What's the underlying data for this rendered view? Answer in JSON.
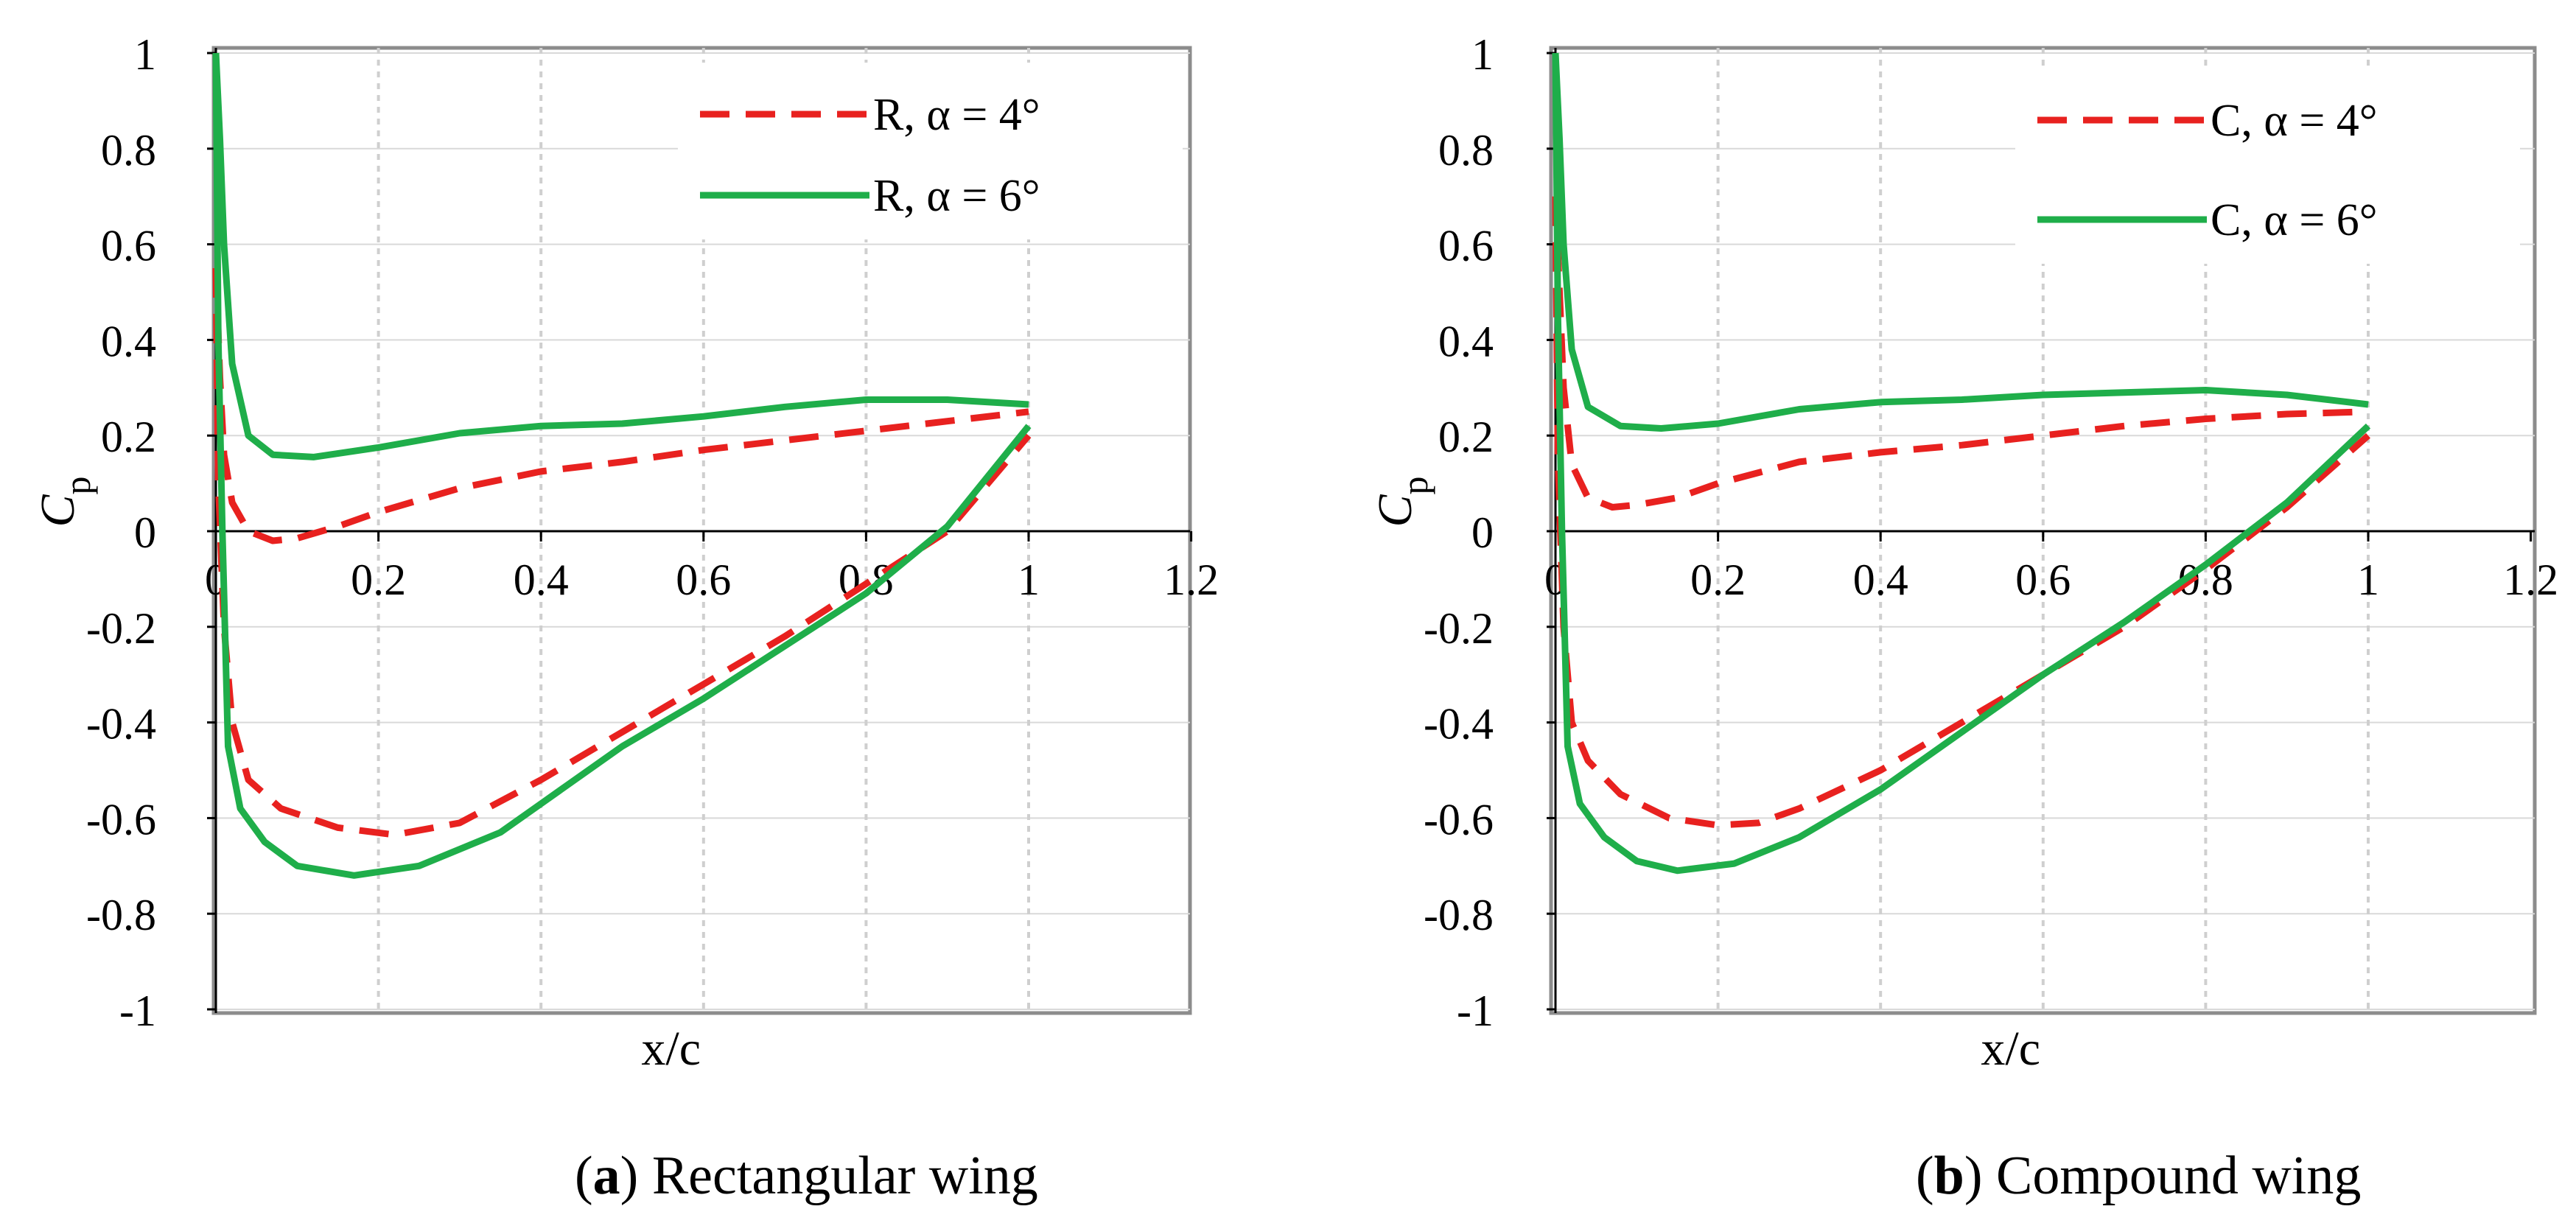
{
  "colors": {
    "alpha4": "#e8211f",
    "alpha6": "#1fae4a",
    "grid": "#d9d9d9",
    "vgrid": "#cfcfcf",
    "frame": "#8c8c8c",
    "axis": "#000000"
  },
  "chart_data": [
    {
      "type": "line",
      "panel_id": "a",
      "caption_letter": "a",
      "caption_open": "(",
      "caption_close": ")",
      "caption_text": " Rectangular wing",
      "xlabel": "x/c",
      "ylabel_main": "C",
      "ylabel_sub": "p",
      "xlim": [
        0,
        1.2
      ],
      "ylim": [
        -1,
        1
      ],
      "xticks": [
        0,
        0.2,
        0.4,
        0.6,
        0.8,
        1,
        1.2
      ],
      "xtick_labels": [
        "0",
        "0.2",
        "0.4",
        "0.6",
        "0.8",
        "1",
        "1.2"
      ],
      "yticks": [
        1,
        0.8,
        0.6,
        0.4,
        0.2,
        0,
        -0.2,
        -0.4,
        -0.6,
        -0.8,
        -1
      ],
      "ytick_labels": [
        "1",
        "0.8",
        "0.6",
        "0.4",
        "0.2",
        "0",
        "-0.2",
        "-0.4",
        "-0.6",
        "-0.8",
        "-1"
      ],
      "legend_position": "top-right",
      "series": [
        {
          "name": "R, α = 4°",
          "style": "dashed",
          "color_key": "alpha4",
          "upper": [
            [
              0,
              0.55
            ],
            [
              0.005,
              0.32
            ],
            [
              0.01,
              0.16
            ],
            [
              0.02,
              0.06
            ],
            [
              0.04,
              0.0
            ],
            [
              0.07,
              -0.02
            ],
            [
              0.1,
              -0.015
            ],
            [
              0.15,
              0.01
            ],
            [
              0.2,
              0.04
            ],
            [
              0.3,
              0.09
            ],
            [
              0.4,
              0.125
            ],
            [
              0.5,
              0.145
            ],
            [
              0.6,
              0.17
            ],
            [
              0.7,
              0.19
            ],
            [
              0.8,
              0.21
            ],
            [
              0.9,
              0.23
            ],
            [
              1.0,
              0.25
            ]
          ],
          "lower": [
            [
              0,
              0.55
            ],
            [
              0.003,
              0.1
            ],
            [
              0.01,
              -0.2
            ],
            [
              0.02,
              -0.4
            ],
            [
              0.04,
              -0.52
            ],
            [
              0.08,
              -0.58
            ],
            [
              0.15,
              -0.62
            ],
            [
              0.22,
              -0.635
            ],
            [
              0.3,
              -0.61
            ],
            [
              0.4,
              -0.52
            ],
            [
              0.5,
              -0.42
            ],
            [
              0.6,
              -0.32
            ],
            [
              0.7,
              -0.22
            ],
            [
              0.8,
              -0.11
            ],
            [
              0.9,
              0.0
            ],
            [
              1.0,
              0.2
            ]
          ]
        },
        {
          "name": "R, α = 6°",
          "style": "solid",
          "color_key": "alpha6",
          "upper": [
            [
              0,
              1.0
            ],
            [
              0.005,
              0.82
            ],
            [
              0.01,
              0.6
            ],
            [
              0.02,
              0.35
            ],
            [
              0.04,
              0.2
            ],
            [
              0.07,
              0.16
            ],
            [
              0.12,
              0.155
            ],
            [
              0.2,
              0.175
            ],
            [
              0.3,
              0.205
            ],
            [
              0.4,
              0.22
            ],
            [
              0.5,
              0.225
            ],
            [
              0.6,
              0.24
            ],
            [
              0.7,
              0.26
            ],
            [
              0.8,
              0.275
            ],
            [
              0.9,
              0.275
            ],
            [
              1.0,
              0.265
            ]
          ],
          "lower": [
            [
              0,
              1.0
            ],
            [
              0.003,
              0.4
            ],
            [
              0.008,
              0.0
            ],
            [
              0.015,
              -0.45
            ],
            [
              0.03,
              -0.58
            ],
            [
              0.06,
              -0.65
            ],
            [
              0.1,
              -0.7
            ],
            [
              0.17,
              -0.72
            ],
            [
              0.25,
              -0.7
            ],
            [
              0.35,
              -0.63
            ],
            [
              0.4,
              -0.57
            ],
            [
              0.5,
              -0.45
            ],
            [
              0.6,
              -0.35
            ],
            [
              0.7,
              -0.24
            ],
            [
              0.8,
              -0.13
            ],
            [
              0.9,
              0.01
            ],
            [
              1.0,
              0.22
            ]
          ]
        }
      ]
    },
    {
      "type": "line",
      "panel_id": "b",
      "caption_letter": "b",
      "caption_open": "(",
      "caption_close": ")",
      "caption_text": " Compound wing",
      "xlabel": "x/c",
      "ylabel_main": "C",
      "ylabel_sub": "p",
      "xlim": [
        0,
        1.2
      ],
      "ylim": [
        -1,
        1
      ],
      "xticks": [
        0,
        0.2,
        0.4,
        0.6,
        0.8,
        1,
        1.2
      ],
      "xtick_labels": [
        "0",
        "0.2",
        "0.4",
        "0.6",
        "0.8",
        "1",
        "1.2"
      ],
      "yticks": [
        1,
        0.8,
        0.6,
        0.4,
        0.2,
        0,
        -0.2,
        -0.4,
        -0.6,
        -0.8,
        -1
      ],
      "ytick_labels": [
        "1",
        "0.8",
        "0.6",
        "0.4",
        "0.2",
        "0",
        "-0.2",
        "-0.4",
        "-0.6",
        "-0.8",
        "-1"
      ],
      "legend_position": "top-right",
      "series": [
        {
          "name": "C, α = 4°",
          "style": "dashed",
          "color_key": "alpha4",
          "upper": [
            [
              0,
              0.7
            ],
            [
              0.005,
              0.5
            ],
            [
              0.01,
              0.3
            ],
            [
              0.02,
              0.14
            ],
            [
              0.04,
              0.07
            ],
            [
              0.07,
              0.05
            ],
            [
              0.1,
              0.055
            ],
            [
              0.15,
              0.07
            ],
            [
              0.2,
              0.1
            ],
            [
              0.3,
              0.145
            ],
            [
              0.4,
              0.165
            ],
            [
              0.5,
              0.18
            ],
            [
              0.6,
              0.2
            ],
            [
              0.7,
              0.22
            ],
            [
              0.8,
              0.235
            ],
            [
              0.9,
              0.245
            ],
            [
              1.0,
              0.25
            ]
          ],
          "lower": [
            [
              0,
              0.7
            ],
            [
              0.003,
              0.15
            ],
            [
              0.01,
              -0.2
            ],
            [
              0.02,
              -0.4
            ],
            [
              0.04,
              -0.48
            ],
            [
              0.08,
              -0.55
            ],
            [
              0.14,
              -0.6
            ],
            [
              0.2,
              -0.615
            ],
            [
              0.25,
              -0.61
            ],
            [
              0.3,
              -0.58
            ],
            [
              0.4,
              -0.5
            ],
            [
              0.5,
              -0.4
            ],
            [
              0.6,
              -0.3
            ],
            [
              0.7,
              -0.2
            ],
            [
              0.8,
              -0.08
            ],
            [
              0.9,
              0.05
            ],
            [
              1.0,
              0.2
            ]
          ]
        },
        {
          "name": "C, α = 6°",
          "style": "solid",
          "color_key": "alpha6",
          "upper": [
            [
              0,
              1.0
            ],
            [
              0.005,
              0.82
            ],
            [
              0.01,
              0.6
            ],
            [
              0.02,
              0.38
            ],
            [
              0.04,
              0.26
            ],
            [
              0.08,
              0.22
            ],
            [
              0.13,
              0.215
            ],
            [
              0.2,
              0.225
            ],
            [
              0.3,
              0.255
            ],
            [
              0.4,
              0.27
            ],
            [
              0.5,
              0.275
            ],
            [
              0.6,
              0.285
            ],
            [
              0.7,
              0.29
            ],
            [
              0.8,
              0.295
            ],
            [
              0.9,
              0.285
            ],
            [
              1.0,
              0.265
            ]
          ],
          "lower": [
            [
              0,
              1.0
            ],
            [
              0.003,
              0.45
            ],
            [
              0.008,
              0.0
            ],
            [
              0.015,
              -0.45
            ],
            [
              0.03,
              -0.57
            ],
            [
              0.06,
              -0.64
            ],
            [
              0.1,
              -0.69
            ],
            [
              0.15,
              -0.71
            ],
            [
              0.22,
              -0.695
            ],
            [
              0.3,
              -0.64
            ],
            [
              0.4,
              -0.54
            ],
            [
              0.5,
              -0.42
            ],
            [
              0.6,
              -0.3
            ],
            [
              0.7,
              -0.19
            ],
            [
              0.8,
              -0.07
            ],
            [
              0.9,
              0.06
            ],
            [
              1.0,
              0.22
            ]
          ]
        }
      ]
    }
  ]
}
